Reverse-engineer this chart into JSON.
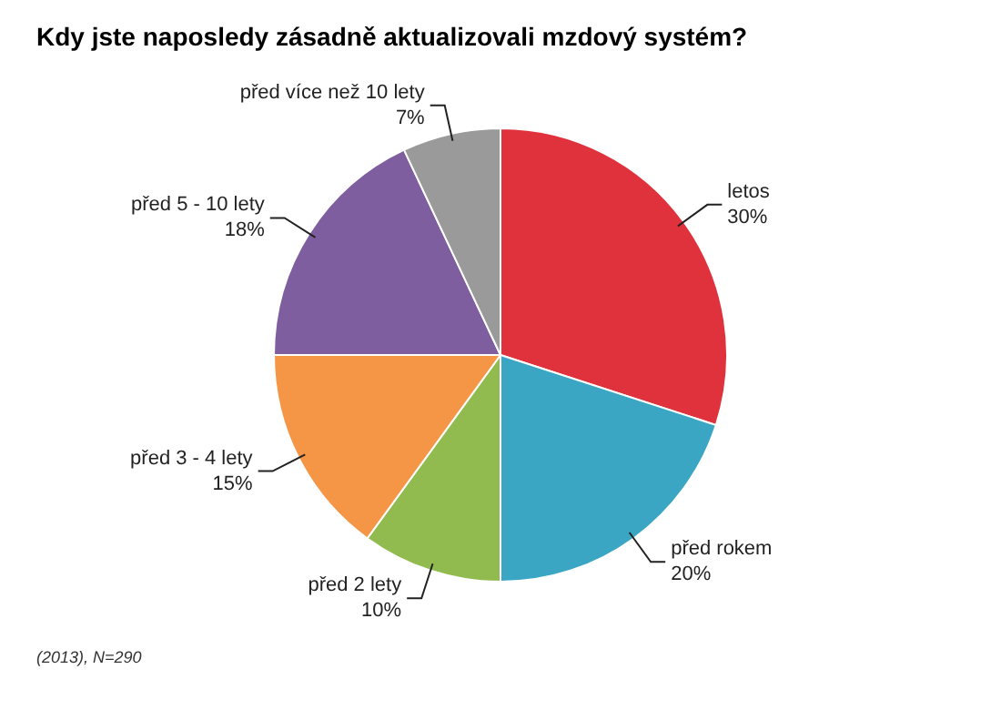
{
  "chart_data": {
    "type": "pie",
    "title": "Kdy jste naposledy zásadně aktualizovali mzdový systém?",
    "categories": [
      "letos",
      "před rokem",
      "před 2 lety",
      "před 3 - 4 lety",
      "před 5 - 10 lety",
      "před více než 10 lety"
    ],
    "values": [
      30,
      20,
      10,
      15,
      18,
      7
    ],
    "value_labels": [
      "30%",
      "20%",
      "10%",
      "15%",
      "18%",
      "7%"
    ],
    "colors": [
      "#e0323c",
      "#3aa6c4",
      "#92bb4f",
      "#f59646",
      "#7f5ea0",
      "#9a9a9a"
    ],
    "legend": false,
    "annotations": [
      "(2013), N=290"
    ]
  }
}
